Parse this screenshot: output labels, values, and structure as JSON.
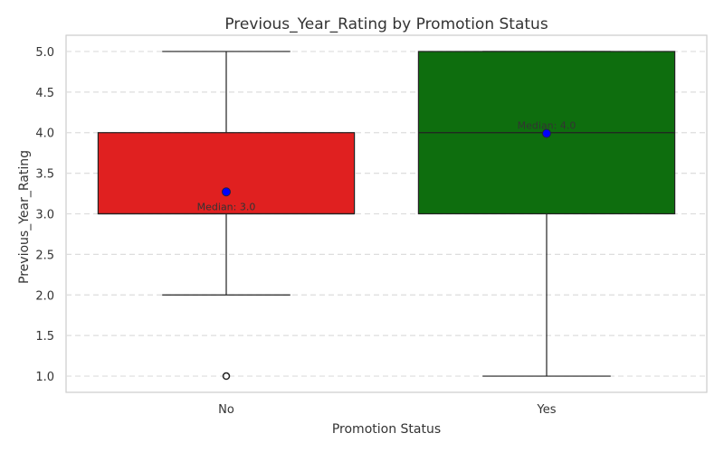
{
  "chart_data": {
    "type": "box",
    "title": "Previous_Year_Rating by Promotion Status",
    "xlabel": "Promotion Status",
    "ylabel": "Previous_Year_Rating",
    "ylim": [
      0.8,
      5.2
    ],
    "yticks": [
      "1.0",
      "1.5",
      "2.0",
      "2.5",
      "3.0",
      "3.5",
      "4.0",
      "4.5",
      "5.0"
    ],
    "grid": "horizontal dashed",
    "categories": [
      "No",
      "Yes"
    ],
    "boxes": [
      {
        "category": "No",
        "color": "#e02020",
        "whisker_low": 2.0,
        "q1": 3.0,
        "median": 3.0,
        "q3": 4.0,
        "whisker_high": 5.0,
        "outliers": [
          1.0
        ],
        "mean": 3.27,
        "median_label": "Median: 3.0"
      },
      {
        "category": "Yes",
        "color": "#0e6e0e",
        "whisker_low": 1.0,
        "q1": 3.0,
        "median": 4.0,
        "q3": 5.0,
        "whisker_high": 5.0,
        "outliers": [],
        "mean": 3.99,
        "median_label": "Median: 4.0"
      }
    ],
    "mean_marker_color": "#0000ff"
  }
}
